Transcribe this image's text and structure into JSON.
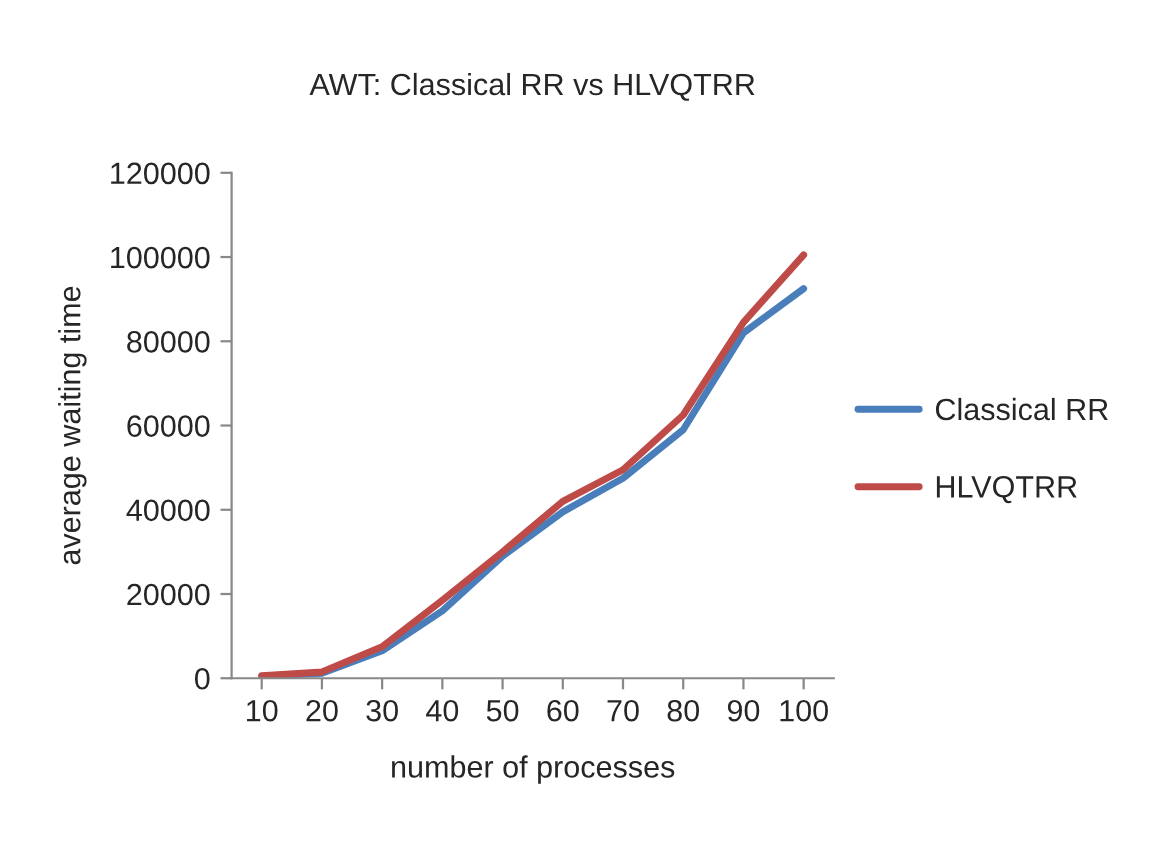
{
  "chart_data": {
    "type": "line",
    "title": "AWT: Classical RR vs HLVQTRR",
    "xlabel": "number of processes",
    "ylabel": "average waiting time",
    "categories": [
      "10",
      "20",
      "30",
      "40",
      "50",
      "60",
      "70",
      "80",
      "90",
      "100"
    ],
    "series": [
      {
        "name": "Classical RR",
        "color": "#4a7ebb",
        "values": [
          500,
          1200,
          6500,
          16000,
          29000,
          39500,
          47500,
          59000,
          82000,
          92500
        ]
      },
      {
        "name": "HLVQTRR",
        "color": "#be4b48",
        "values": [
          600,
          1500,
          7500,
          18500,
          30000,
          42000,
          49500,
          62500,
          84500,
          100500
        ]
      }
    ],
    "ylim": [
      0,
      120000
    ],
    "yticks": [
      0,
      20000,
      40000,
      60000,
      80000,
      100000,
      120000
    ],
    "grid": false,
    "legend": "right",
    "marker": "none",
    "line_style": "solid"
  }
}
